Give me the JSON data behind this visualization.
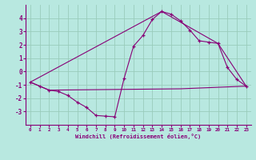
{
  "xlabel": "Windchill (Refroidissement éolien,°C)",
  "bg_color": "#b8e8e0",
  "grid_color": "#99ccbb",
  "line_color": "#880077",
  "xlim": [
    -0.5,
    23.5
  ],
  "ylim": [
    -4.0,
    5.0
  ],
  "yticks": [
    -3,
    -2,
    -1,
    0,
    1,
    2,
    3,
    4
  ],
  "xticks": [
    0,
    1,
    2,
    3,
    4,
    5,
    6,
    7,
    8,
    9,
    10,
    11,
    12,
    13,
    14,
    15,
    16,
    17,
    18,
    19,
    20,
    21,
    22,
    23
  ],
  "line1_x": [
    0,
    1,
    2,
    3,
    4,
    5,
    6,
    7,
    8,
    9,
    10,
    11,
    12,
    13,
    14,
    15,
    16,
    17,
    18,
    19,
    20,
    21,
    22,
    23
  ],
  "line1_y": [
    -0.8,
    -1.1,
    -1.4,
    -1.5,
    -1.8,
    -2.3,
    -2.7,
    -3.3,
    -3.35,
    -3.4,
    -0.5,
    1.9,
    2.7,
    3.9,
    4.5,
    4.3,
    3.8,
    3.1,
    2.3,
    2.2,
    2.1,
    0.3,
    -0.6,
    -1.1
  ],
  "line2_x": [
    0,
    14,
    20,
    23
  ],
  "line2_y": [
    -0.8,
    4.5,
    2.1,
    -1.1
  ],
  "line3_x": [
    0,
    2,
    16,
    23
  ],
  "line3_y": [
    -0.8,
    -1.4,
    -1.3,
    -1.1
  ],
  "marker": "+"
}
